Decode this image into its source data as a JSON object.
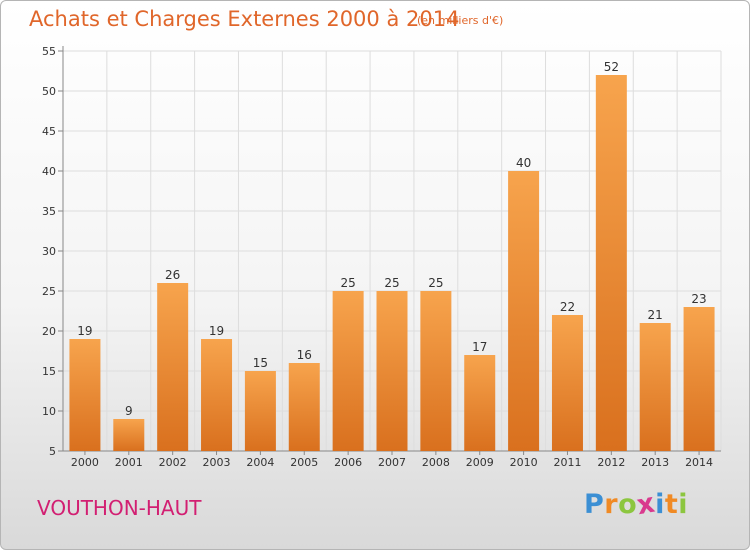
{
  "header": {
    "title": "Achats et Charges Externes 2000 à 2014",
    "subtitle": "(en milliers d'€)"
  },
  "footer": {
    "commune": "VOUTHON-HAUT",
    "logo": {
      "letters": [
        "P",
        "r",
        "o",
        "x",
        "i",
        "t",
        "i"
      ],
      "colors": [
        "#3b8fd4",
        "#f08a24",
        "#8cc63f",
        "#d93a8e",
        "#3b8fd4",
        "#f08a24",
        "#8cc63f"
      ]
    }
  },
  "colors": {
    "bar_light": "#f7a44d",
    "bar_dark": "#d9701e",
    "text": "#333333",
    "grid": "#dddddd",
    "accent": "#e0662a"
  },
  "chart_data": {
    "type": "bar",
    "title": "Achats et Charges Externes 2000 à 2014",
    "subtitle": "(en milliers d'€)",
    "categories": [
      "2000",
      "2001",
      "2002",
      "2003",
      "2004",
      "2005",
      "2006",
      "2007",
      "2008",
      "2009",
      "2010",
      "2011",
      "2012",
      "2013",
      "2014"
    ],
    "values": [
      19,
      9,
      26,
      19,
      15,
      16,
      25,
      25,
      25,
      17,
      40,
      22,
      52,
      21,
      23
    ],
    "ylim": [
      5,
      55
    ],
    "yticks": [
      5,
      10,
      15,
      20,
      25,
      30,
      35,
      40,
      45,
      50,
      55
    ],
    "xlabel": "",
    "ylabel": "",
    "grid": true,
    "legend": "none"
  }
}
